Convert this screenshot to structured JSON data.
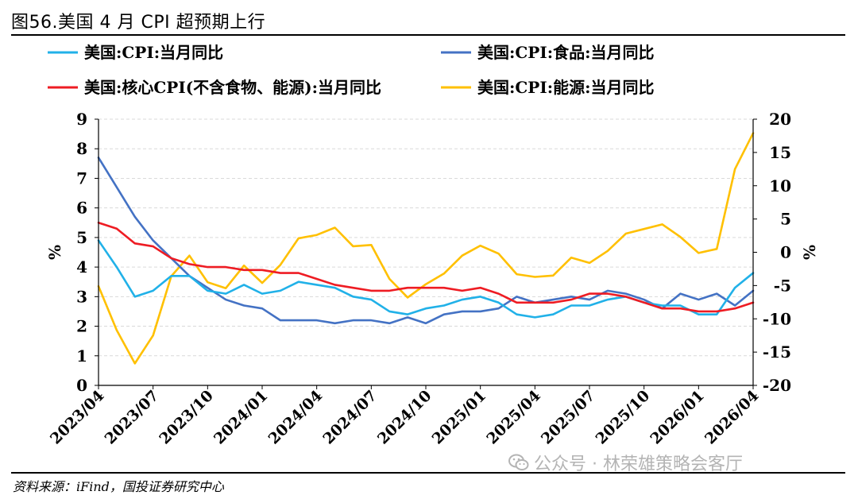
{
  "header": {
    "title": "图56.美国 4 月 CPI 超预期上行"
  },
  "footer": {
    "source": "资料来源：iFind，国投证券研究中心",
    "watermark": "公众号 · 林荣雄策略会客厅",
    "watermark_icon": "wechat-icon"
  },
  "chart_data": {
    "type": "line",
    "title": "",
    "ylabel_left": "%",
    "ylabel_right": "%",
    "ylim_left": [
      0,
      9
    ],
    "ylim_right": [
      -20,
      20
    ],
    "yticks_left": [
      0,
      1,
      2,
      3,
      4,
      5,
      6,
      7,
      8,
      9
    ],
    "yticks_right": [
      -20,
      -15,
      -10,
      -5,
      0,
      5,
      10,
      15,
      20
    ],
    "xtick_labels": [
      "2023/04",
      "2023/07",
      "2023/10",
      "2024/01",
      "2024/04",
      "2024/07",
      "2024/10",
      "2025/01",
      "2025/04",
      "2025/07",
      "2025/10",
      "2026/01",
      "2026/04"
    ],
    "x": [
      "2023/04",
      "2023/05",
      "2023/06",
      "2023/07",
      "2023/08",
      "2023/09",
      "2023/10",
      "2023/11",
      "2023/12",
      "2024/01",
      "2024/02",
      "2024/03",
      "2024/04",
      "2024/05",
      "2024/06",
      "2024/07",
      "2024/08",
      "2024/09",
      "2024/10",
      "2024/11",
      "2024/12",
      "2025/01",
      "2025/02",
      "2025/03",
      "2025/04",
      "2025/05",
      "2025/06",
      "2025/07",
      "2025/08",
      "2025/09",
      "2025/10",
      "2025/11",
      "2025/12",
      "2026/01",
      "2026/02",
      "2026/03",
      "2026/04"
    ],
    "legend_placement": "top",
    "grid": "horizontal-dashed",
    "series": [
      {
        "name": "美国:CPI:当月同比",
        "color": "#21b1e8",
        "axis": "left",
        "values": [
          4.9,
          4.0,
          3.0,
          3.2,
          3.7,
          3.7,
          3.2,
          3.1,
          3.4,
          3.1,
          3.2,
          3.5,
          3.4,
          3.3,
          3.0,
          2.9,
          2.5,
          2.4,
          2.6,
          2.7,
          2.9,
          3.0,
          2.8,
          2.4,
          2.3,
          2.4,
          2.7,
          2.7,
          2.9,
          3.0,
          2.8,
          2.7,
          2.7,
          2.4,
          2.4,
          3.3,
          3.8
        ]
      },
      {
        "name": "美国:CPI:食品:当月同比",
        "color": "#4472c4",
        "axis": "left",
        "values": [
          7.7,
          6.7,
          5.7,
          4.9,
          4.3,
          3.7,
          3.3,
          2.9,
          2.7,
          2.6,
          2.2,
          2.2,
          2.2,
          2.1,
          2.2,
          2.2,
          2.1,
          2.3,
          2.1,
          2.4,
          2.5,
          2.5,
          2.6,
          3.0,
          2.8,
          2.9,
          3.0,
          2.9,
          3.2,
          3.1,
          2.9,
          2.6,
          3.1,
          2.9,
          3.1,
          2.7,
          3.2
        ]
      },
      {
        "name": "美国:核心CPI(不含食物、能源):当月同比",
        "color": "#ee1c23",
        "axis": "left",
        "values": [
          5.5,
          5.3,
          4.8,
          4.7,
          4.3,
          4.1,
          4.0,
          4.0,
          3.9,
          3.9,
          3.8,
          3.8,
          3.6,
          3.4,
          3.3,
          3.2,
          3.2,
          3.3,
          3.3,
          3.3,
          3.2,
          3.3,
          3.1,
          2.8,
          2.8,
          2.8,
          2.9,
          3.1,
          3.1,
          3.0,
          2.8,
          2.6,
          2.6,
          2.5,
          2.5,
          2.6,
          2.8
        ]
      },
      {
        "name": "美国:CPI:能源:当月同比",
        "color": "#ffc000",
        "axis": "right",
        "values": [
          -5.1,
          -11.7,
          -16.7,
          -12.5,
          -3.6,
          -0.5,
          -4.5,
          -5.4,
          -2.0,
          -4.6,
          -1.9,
          2.1,
          2.6,
          3.7,
          0.9,
          1.1,
          -4.0,
          -6.8,
          -4.8,
          -3.2,
          -0.5,
          1.0,
          -0.2,
          -3.3,
          -3.7,
          -3.5,
          -0.8,
          -1.6,
          0.2,
          2.8,
          3.5,
          4.2,
          2.3,
          -0.1,
          0.5,
          12.5,
          17.9
        ]
      }
    ]
  }
}
